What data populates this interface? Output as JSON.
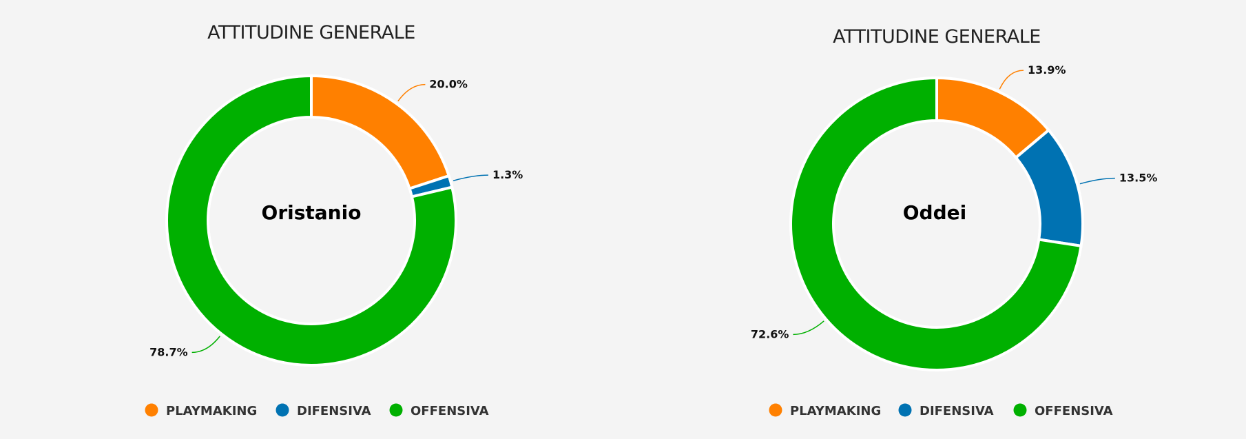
{
  "chart_data": [
    {
      "type": "pie",
      "title": "ATTITUDINE GENERALE",
      "center_label": "Oristanio",
      "slices": [
        {
          "name": "PLAYMAKING",
          "value": 20.0,
          "label": "20.0%",
          "color": "#ff8000"
        },
        {
          "name": "DIFENSIVA",
          "value": 1.3,
          "label": "1.3%",
          "color": "#0072b2"
        },
        {
          "name": "OFFENSIVA",
          "value": 78.7,
          "label": "78.7%",
          "color": "#00b000"
        }
      ],
      "legend": [
        "PLAYMAKING",
        "DIFENSIVA",
        "OFFENSIVA"
      ],
      "legend_position": "bottom"
    },
    {
      "type": "pie",
      "title": "ATTITUDINE GENERALE",
      "center_label": "Oddei",
      "slices": [
        {
          "name": "PLAYMAKING",
          "value": 13.9,
          "label": "13.9%",
          "color": "#ff8000"
        },
        {
          "name": "DIFENSIVA",
          "value": 13.5,
          "label": "13.5%",
          "color": "#0072b2"
        },
        {
          "name": "OFFENSIVA",
          "value": 72.6,
          "label": "72.6%",
          "color": "#00b000"
        }
      ],
      "legend": [
        "PLAYMAKING",
        "DIFENSIVA",
        "OFFENSIVA"
      ],
      "legend_position": "bottom"
    }
  ]
}
